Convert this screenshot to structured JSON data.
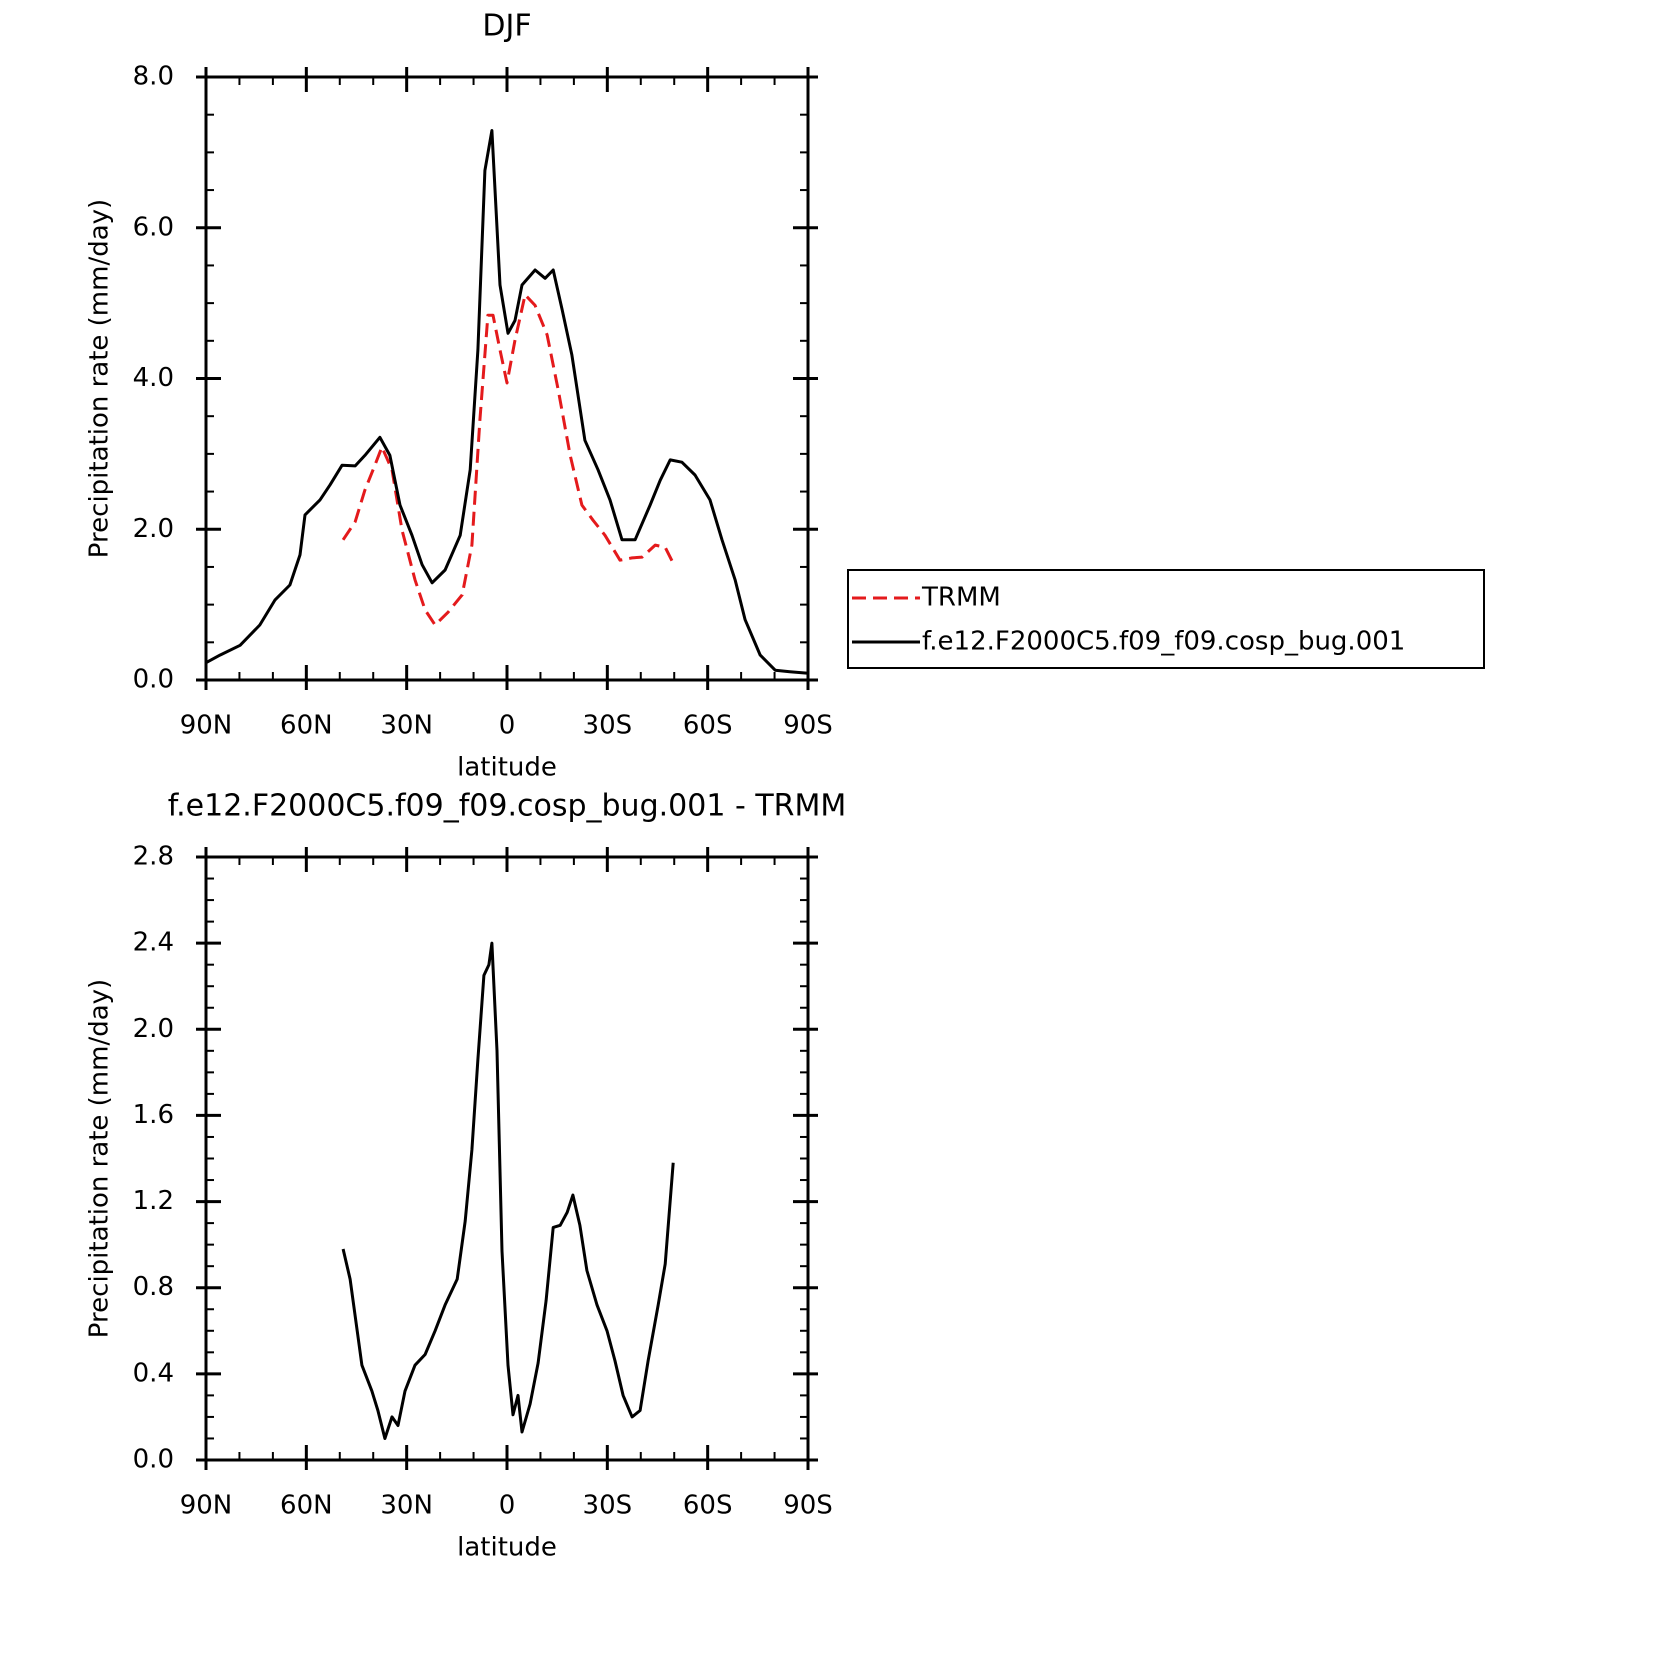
{
  "chart_data": [
    {
      "type": "line",
      "title": "DJF",
      "xlabel": "latitude",
      "ylabel": "Precipitation rate (mm/day)",
      "xlim": [
        90,
        -90
      ],
      "xticks": [
        {
          "value": 90,
          "label": "90N"
        },
        {
          "value": 60,
          "label": "60N"
        },
        {
          "value": 30,
          "label": "30N"
        },
        0,
        {
          "value": -30,
          "label": "30S"
        },
        {
          "value": -60,
          "label": "60S"
        },
        {
          "value": -90,
          "label": "90S"
        }
      ],
      "ylim": [
        0,
        8
      ],
      "yticks": [
        {
          "value": 0,
          "label": "0.0"
        },
        {
          "value": 2,
          "label": "2.0"
        },
        {
          "value": 4,
          "label": "4.0"
        },
        {
          "value": 6,
          "label": "6.0"
        },
        {
          "value": 8,
          "label": "8.0"
        }
      ],
      "legend": "right",
      "series": [
        {
          "name": "TRMM",
          "color": "#e41a1c",
          "dashed": true,
          "x": [
            49.0,
            45.4,
            42.5,
            39.5,
            37.4,
            34.4,
            31.4,
            27.5,
            24.5,
            21.5,
            17.6,
            13.4,
            10.5,
            8.1,
            5.7,
            4.2,
            2.1,
            0.0,
            -2.4,
            -5.4,
            -8.4,
            -12.0,
            -15.3,
            -18.9,
            -22.4,
            -25.7,
            -29.3,
            -33.8,
            -37.4,
            -40.4,
            -44.3,
            -47.3,
            -49.7
          ],
          "values": [
            1.86,
            2.1,
            2.52,
            2.85,
            3.09,
            2.79,
            1.99,
            1.33,
            0.93,
            0.73,
            0.9,
            1.13,
            1.79,
            3.45,
            4.84,
            4.84,
            4.38,
            3.94,
            4.51,
            5.11,
            4.97,
            4.58,
            3.85,
            2.98,
            2.32,
            2.12,
            1.92,
            1.59,
            1.62,
            1.63,
            1.79,
            1.76,
            1.55
          ]
        },
        {
          "name": "f.e12.F2000C5.f09_f09.cosp_bug.001",
          "color": "#000000",
          "dashed": false,
          "x": [
            90,
            85.8,
            79.8,
            73.9,
            69.4,
            64.9,
            61.9,
            60.4,
            55.9,
            52.9,
            49.3,
            45.4,
            42.5,
            38.0,
            35.0,
            32.0,
            28.4,
            25.4,
            22.4,
            18.5,
            14.0,
            11.0,
            8.7,
            6.6,
            4.5,
            2.1,
            -0.3,
            -2.4,
            -4.5,
            -8.4,
            -11.4,
            -13.8,
            -16.5,
            -19.4,
            -23.3,
            -27.2,
            -30.8,
            -34.4,
            -38.3,
            -42.8,
            -45.8,
            -48.8,
            -52.3,
            -56.2,
            -60.7,
            -64.3,
            -68.2,
            -71.2,
            -75.7,
            -80.2,
            -84.6,
            -90
          ],
          "values": [
            0.23,
            0.33,
            0.46,
            0.73,
            1.06,
            1.26,
            1.66,
            2.19,
            2.39,
            2.59,
            2.85,
            2.84,
            2.98,
            3.22,
            2.98,
            2.32,
            1.92,
            1.53,
            1.29,
            1.46,
            1.92,
            2.79,
            4.38,
            6.76,
            7.29,
            5.24,
            4.6,
            4.77,
            5.24,
            5.44,
            5.33,
            5.44,
            4.91,
            4.31,
            3.18,
            2.79,
            2.39,
            1.86,
            1.86,
            2.32,
            2.65,
            2.92,
            2.89,
            2.72,
            2.39,
            1.86,
            1.33,
            0.8,
            0.33,
            0.13,
            0.11,
            0.09
          ]
        }
      ]
    },
    {
      "type": "line",
      "title": "f.e12.F2000C5.f09_f09.cosp_bug.001 - TRMM",
      "xlabel": "latitude",
      "ylabel": "Precipitation rate (mm/day)",
      "xlim": [
        90,
        -90
      ],
      "xticks": [
        {
          "value": 90,
          "label": "90N"
        },
        {
          "value": 60,
          "label": "60N"
        },
        {
          "value": 30,
          "label": "30N"
        },
        0,
        {
          "value": -30,
          "label": "30S"
        },
        {
          "value": -60,
          "label": "60S"
        },
        {
          "value": -90,
          "label": "90S"
        }
      ],
      "ylim": [
        0,
        2.8
      ],
      "yticks": [
        {
          "value": 0,
          "label": "0.0"
        },
        0.4,
        0.8,
        1.2,
        1.6,
        {
          "value": 2,
          "label": "2.0"
        },
        2.4,
        2.8
      ],
      "series": [
        {
          "color": "#000000",
          "dashed": false,
          "x": [
            49.0,
            46.9,
            44.8,
            43.4,
            40.4,
            38.6,
            36.5,
            34.4,
            32.6,
            30.5,
            27.5,
            24.5,
            21.5,
            18.5,
            14.9,
            12.5,
            10.5,
            8.7,
            6.9,
            5.4,
            4.5,
            3.0,
            1.5,
            -0.3,
            -1.8,
            -3.3,
            -4.5,
            -6.9,
            -9.3,
            -11.7,
            -13.8,
            -15.9,
            -18.0,
            -19.7,
            -21.8,
            -23.9,
            -26.9,
            -29.9,
            -32.3,
            -34.7,
            -37.4,
            -39.8,
            -42.2,
            -45.2,
            -47.3,
            -49.7
          ],
          "values": [
            0.98,
            0.84,
            0.6,
            0.44,
            0.32,
            0.23,
            0.1,
            0.2,
            0.16,
            0.32,
            0.44,
            0.49,
            0.6,
            0.72,
            0.84,
            1.11,
            1.44,
            1.86,
            2.25,
            2.3,
            2.4,
            1.9,
            0.97,
            0.44,
            0.21,
            0.3,
            0.13,
            0.26,
            0.45,
            0.74,
            1.08,
            1.09,
            1.15,
            1.23,
            1.09,
            0.88,
            0.72,
            0.6,
            0.46,
            0.3,
            0.2,
            0.23,
            0.46,
            0.72,
            0.91,
            1.38
          ]
        }
      ]
    }
  ]
}
